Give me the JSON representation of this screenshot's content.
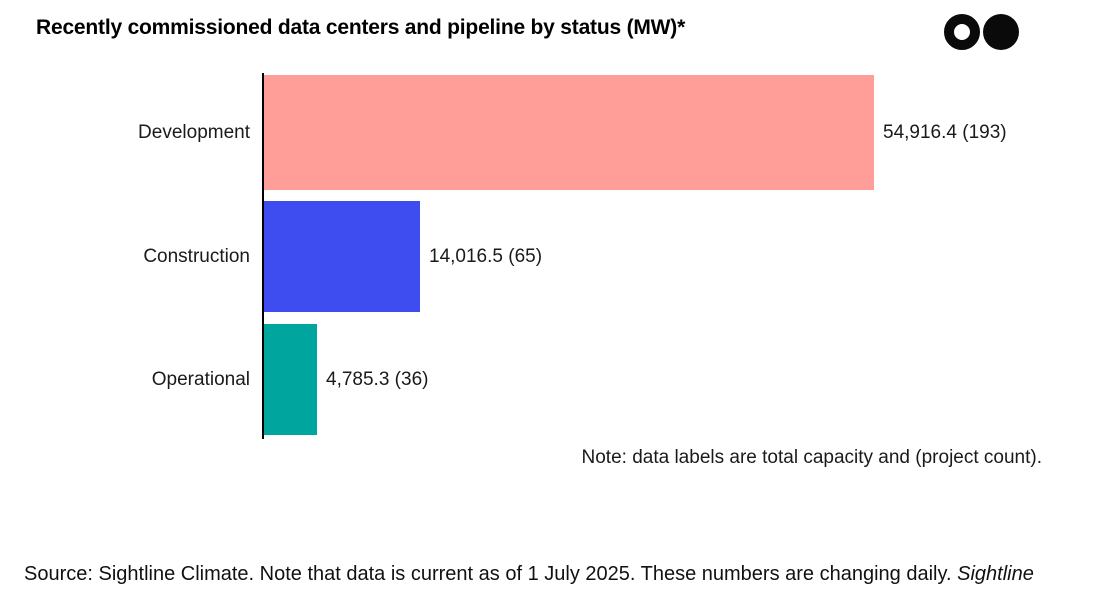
{
  "header": {
    "title": "Recently commissioned data centers and pipeline by status (MW)*"
  },
  "logo": {
    "description": "two-circles-logo",
    "color": "#0a0a0a"
  },
  "chart_data": {
    "type": "bar",
    "orientation": "horizontal",
    "title": "Recently commissioned data centers and pipeline by status (MW)*",
    "xlabel": "",
    "ylabel": "",
    "unit": "MW",
    "xlim": [
      0,
      55000
    ],
    "grid": false,
    "legend": false,
    "categories": [
      "Development",
      "Construction",
      "Operational"
    ],
    "values": [
      54916.4,
      14016.5,
      4785.3
    ],
    "project_counts": [
      193,
      65,
      36
    ],
    "data_labels": [
      "54,916.4 (193)",
      "14,016.5 (65)",
      "4,785.3 (36)"
    ],
    "bar_colors": [
      "#FF9E99",
      "#3D4DF0",
      "#00A59D"
    ]
  },
  "note": "Note: data labels are total capacity and (project count).",
  "source": {
    "prefix": "Source: Sightline Climate. Note that data is current as of 1 July 2025. These numbers are changing daily. ",
    "italic": "Sightline"
  }
}
